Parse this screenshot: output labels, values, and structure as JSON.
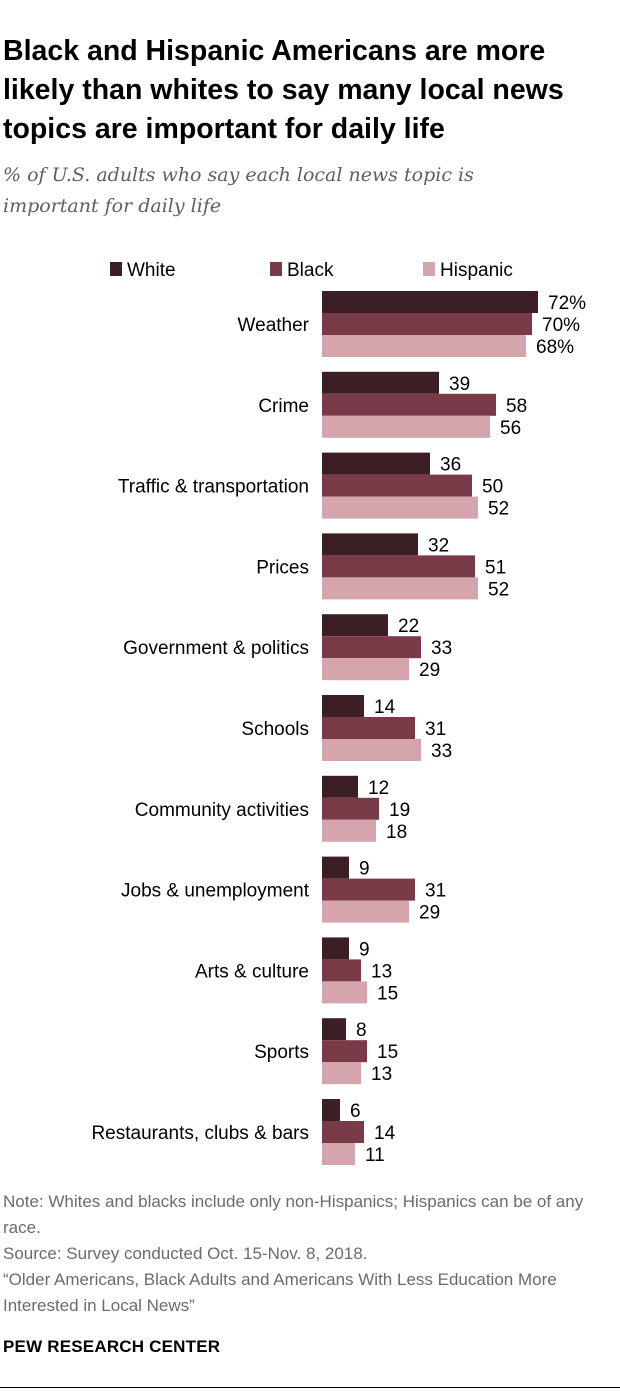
{
  "chart_data": {
    "type": "bar",
    "orientation": "horizontal",
    "title": "Black and Hispanic Americans are more likely than whites to say many local news topics are important for daily life",
    "subtitle": "% of U.S. adults who say each local news topic is important for daily life",
    "categories": [
      "Weather",
      "Crime",
      "Traffic & transportation",
      "Prices",
      "Government & politics",
      "Schools",
      "Community activities",
      "Jobs & unemployment",
      "Arts & culture",
      "Sports",
      "Restaurants, clubs & bars"
    ],
    "series": [
      {
        "name": "White",
        "color": "#3b1f24",
        "values": [
          72,
          39,
          36,
          32,
          22,
          14,
          12,
          9,
          9,
          8,
          6
        ],
        "labels": [
          "72%",
          "39",
          "36",
          "32",
          "22",
          "14",
          "12",
          "9",
          "9",
          "8",
          "6"
        ]
      },
      {
        "name": "Black",
        "color": "#7a3b48",
        "values": [
          70,
          58,
          50,
          51,
          33,
          31,
          19,
          31,
          13,
          15,
          14
        ],
        "labels": [
          "70%",
          "58",
          "50",
          "51",
          "33",
          "31",
          "19",
          "31",
          "13",
          "15",
          "14"
        ]
      },
      {
        "name": "Hispanic",
        "color": "#d4a5ac",
        "values": [
          68,
          56,
          52,
          52,
          29,
          33,
          18,
          29,
          15,
          13,
          11
        ],
        "labels": [
          "68%",
          "56",
          "52",
          "52",
          "29",
          "33",
          "18",
          "29",
          "15",
          "13",
          "11"
        ]
      }
    ],
    "xlim": [
      0,
      100
    ],
    "grid": false,
    "legend": "top"
  },
  "notes": {
    "note": "Note: Whites and blacks include only non-Hispanics; Hispanics can be of any race.",
    "source": "Source: Survey conducted Oct. 15-Nov. 8, 2018.",
    "report": "“Older Americans, Black Adults and Americans With Less Education More Interested in Local News”"
  },
  "logo": "PEW RESEARCH CENTER"
}
